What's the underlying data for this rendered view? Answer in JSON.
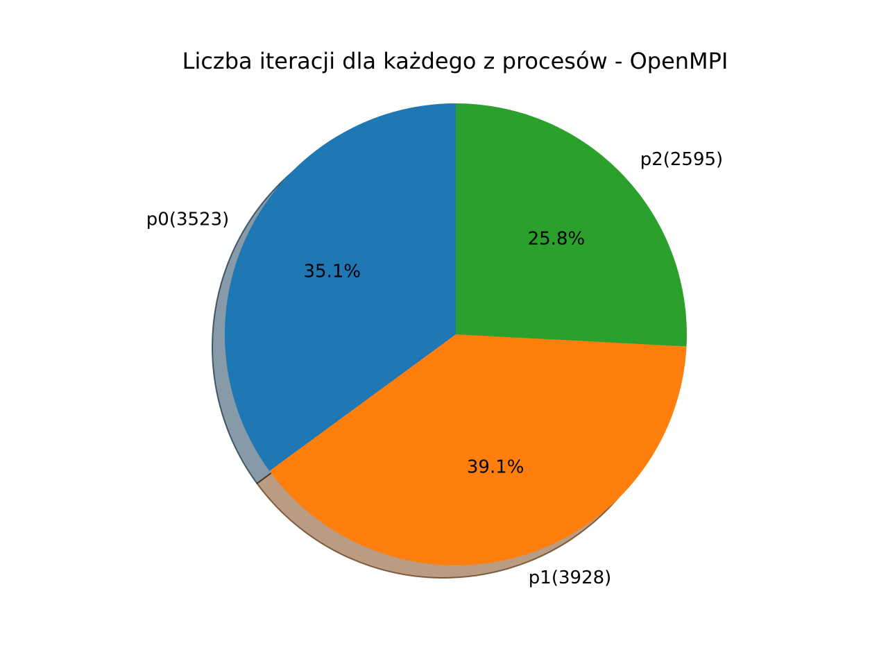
{
  "chart_data": {
    "type": "pie",
    "title": "Liczba iteracji dla każdego z procesów - OpenMPI",
    "labels": [
      "p0(3523)",
      "p1(3928)",
      "p2(2595)"
    ],
    "values": [
      3523,
      3928,
      2595
    ],
    "percent_labels": [
      "35.1%",
      "39.1%",
      "25.8%"
    ],
    "colors": [
      "#1f77b4",
      "#ff7f0e",
      "#2ca02c"
    ],
    "shadow": true,
    "start_angle_deg": 90,
    "direction": "counterclockwise",
    "legend": "none"
  }
}
